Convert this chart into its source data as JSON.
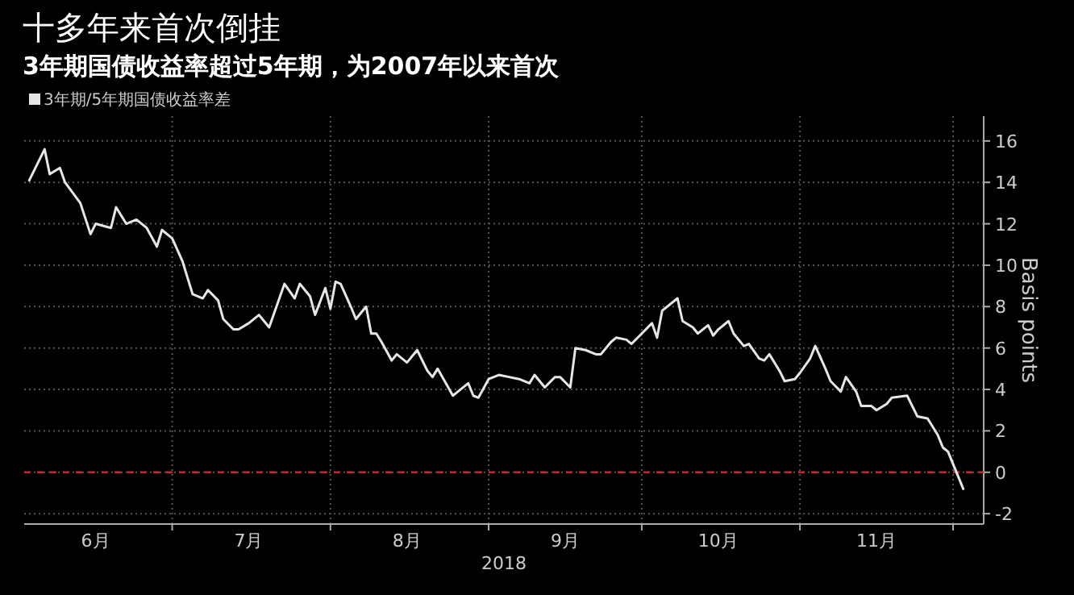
{
  "chart_data": {
    "type": "line",
    "title": "十多年来首次倒挂",
    "subtitle": "3年期国债收益率超过5年期，为2007年以来首次",
    "xlabel": "2018",
    "ylabel": "Basis points",
    "legend": "top left",
    "grid": true,
    "marker": "none",
    "line_style": "solid",
    "xlim": [
      "2018-06-02",
      "2018-12-07"
    ],
    "xticks": [
      {
        "value": "2018-06-16",
        "label": "6月"
      },
      {
        "value": "2018-07-01",
        "label": null
      },
      {
        "value": "2018-07-16",
        "label": "7月"
      },
      {
        "value": "2018-08-01",
        "label": null
      },
      {
        "value": "2018-08-16",
        "label": "8月"
      },
      {
        "value": "2018-09-01",
        "label": null
      },
      {
        "value": "2018-09-16",
        "label": "9月"
      },
      {
        "value": "2018-10-01",
        "label": null
      },
      {
        "value": "2018-10-16",
        "label": "10月"
      },
      {
        "value": "2018-11-01",
        "label": null
      },
      {
        "value": "2018-11-16",
        "label": "11月"
      },
      {
        "value": "2018-12-01",
        "label": null
      }
    ],
    "ylim": [
      -2.5,
      17.2
    ],
    "yticks": [
      -2,
      0,
      2,
      4,
      6,
      8,
      10,
      12,
      14,
      16
    ],
    "ref_lines": [
      {
        "axis": "y",
        "value": 0,
        "color": "#c0282d",
        "line_style": "dashed"
      }
    ],
    "series": [
      {
        "name": "3年期/5年期国债收益率差",
        "color": "#e6e6e6",
        "x": [
          "2018-06-03",
          "2018-06-06",
          "2018-06-07",
          "2018-06-09",
          "2018-06-10",
          "2018-06-13",
          "2018-06-15",
          "2018-06-16",
          "2018-06-19",
          "2018-06-20",
          "2018-06-22",
          "2018-06-24",
          "2018-06-26",
          "2018-06-28",
          "2018-06-29",
          "2018-07-01",
          "2018-07-03",
          "2018-07-05",
          "2018-07-07",
          "2018-07-08",
          "2018-07-10",
          "2018-07-11",
          "2018-07-13",
          "2018-07-14",
          "2018-07-16",
          "2018-07-18",
          "2018-07-20",
          "2018-07-22",
          "2018-07-23",
          "2018-07-25",
          "2018-07-26",
          "2018-07-28",
          "2018-07-29",
          "2018-07-31",
          "2018-08-01",
          "2018-08-02",
          "2018-08-03",
          "2018-08-05",
          "2018-08-06",
          "2018-08-08",
          "2018-08-09",
          "2018-08-10",
          "2018-08-11",
          "2018-08-13",
          "2018-08-14",
          "2018-08-16",
          "2018-08-18",
          "2018-08-20",
          "2018-08-21",
          "2018-08-22",
          "2018-08-25",
          "2018-08-26",
          "2018-08-28",
          "2018-08-29",
          "2018-08-30",
          "2018-09-01",
          "2018-09-03",
          "2018-09-05",
          "2018-09-07",
          "2018-09-09",
          "2018-09-10",
          "2018-09-12",
          "2018-09-14",
          "2018-09-15",
          "2018-09-17",
          "2018-09-18",
          "2018-09-20",
          "2018-09-22",
          "2018-09-23",
          "2018-09-25",
          "2018-09-26",
          "2018-09-28",
          "2018-09-29",
          "2018-10-01",
          "2018-10-03",
          "2018-10-04",
          "2018-10-05",
          "2018-10-08",
          "2018-10-09",
          "2018-10-11",
          "2018-10-12",
          "2018-10-14",
          "2018-10-15",
          "2018-10-16",
          "2018-10-18",
          "2018-10-19",
          "2018-10-21",
          "2018-10-22",
          "2018-10-24",
          "2018-10-25",
          "2018-10-26",
          "2018-10-28",
          "2018-10-29",
          "2018-10-31",
          "2018-11-01",
          "2018-11-03",
          "2018-11-04",
          "2018-11-06",
          "2018-11-07",
          "2018-11-09",
          "2018-11-10",
          "2018-11-12",
          "2018-11-13",
          "2018-11-15",
          "2018-11-16",
          "2018-11-18",
          "2018-11-19",
          "2018-11-22",
          "2018-11-24",
          "2018-11-26",
          "2018-11-28",
          "2018-11-29",
          "2018-11-30",
          "2018-12-03"
        ],
        "values": [
          14.1,
          15.6,
          14.4,
          14.7,
          14.0,
          13.0,
          11.5,
          12.0,
          11.8,
          12.8,
          12.0,
          12.2,
          11.8,
          10.9,
          11.7,
          11.3,
          10.2,
          8.6,
          8.4,
          8.8,
          8.3,
          7.4,
          6.9,
          6.9,
          7.2,
          7.6,
          7.0,
          8.4,
          9.1,
          8.4,
          9.1,
          8.5,
          7.6,
          8.9,
          7.9,
          9.2,
          9.1,
          8.0,
          7.4,
          8.0,
          6.7,
          6.7,
          6.3,
          5.4,
          5.7,
          5.3,
          5.9,
          4.9,
          4.6,
          5.0,
          3.7,
          3.9,
          4.3,
          3.7,
          3.6,
          4.5,
          4.7,
          4.6,
          4.5,
          4.3,
          4.7,
          4.1,
          4.6,
          4.6,
          4.1,
          6.0,
          5.9,
          5.7,
          5.7,
          6.3,
          6.5,
          6.4,
          6.2,
          6.7,
          7.2,
          6.5,
          7.8,
          8.4,
          7.3,
          7.0,
          6.7,
          7.1,
          6.6,
          6.9,
          7.3,
          6.7,
          6.1,
          6.2,
          5.5,
          5.4,
          5.7,
          4.9,
          4.4,
          4.5,
          4.8,
          5.5,
          6.1,
          5.0,
          4.4,
          3.9,
          4.6,
          3.9,
          3.2,
          3.2,
          3.0,
          3.3,
          3.6,
          3.7,
          2.7,
          2.6,
          1.8,
          1.2,
          1.0,
          -0.8
        ]
      }
    ]
  }
}
